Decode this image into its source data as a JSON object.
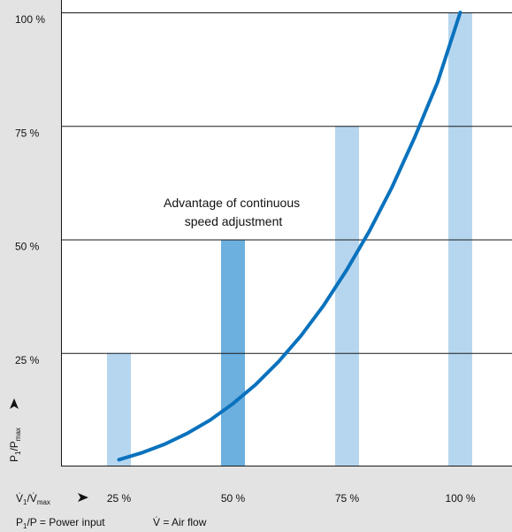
{
  "chart_data": {
    "type": "bar",
    "categories": [
      "25 %",
      "50 %",
      "75 %",
      "100 %"
    ],
    "series": [
      {
        "values": [
          25,
          50,
          75,
          100
        ]
      }
    ],
    "highlight_category": "50 %",
    "curve": {
      "x": [
        25,
        30,
        35,
        40,
        45,
        50,
        55,
        60,
        65,
        70,
        75,
        80,
        85,
        90,
        95,
        100
      ],
      "y": [
        1.5,
        3.0,
        4.9,
        7.3,
        10.2,
        13.8,
        18.0,
        23.0,
        28.8,
        35.5,
        43.2,
        51.8,
        61.5,
        72.5,
        84.6,
        100
      ]
    },
    "ylim": [
      0,
      100
    ],
    "y_ticks": [
      "25 %",
      "50 %",
      "75 %",
      "100 %"
    ],
    "y_tick_values": [
      25,
      50,
      75,
      100
    ],
    "ylabel": {
      "main": "P",
      "sub1": "1",
      "mid": "/P",
      "sub2": "max"
    },
    "xlabel": {
      "main": "V̇",
      "sub1": "1",
      "mid": "/V̇",
      "sub2": "max"
    },
    "annotation": [
      "Advantage of continuous",
      "speed adjustment"
    ],
    "legend": {
      "p": {
        "main": "P",
        "sub": "1",
        "rest": "/P = Power input"
      },
      "v": "V̇ = Air flow"
    },
    "grid": true,
    "colors": {
      "bar": "#b6d6ef",
      "bar_highlight": "#6cb0df",
      "curve": "#0a72bd",
      "axis_band": "#e3e3e3",
      "gridline": "#1a1a1a"
    }
  }
}
